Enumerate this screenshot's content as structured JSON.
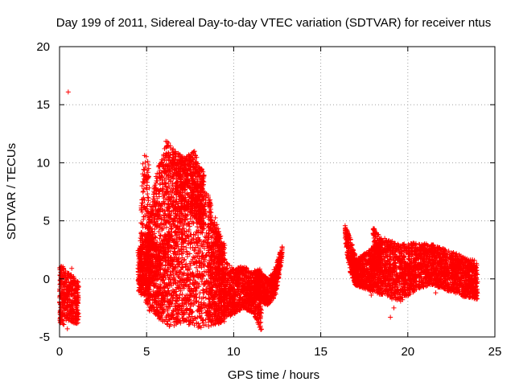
{
  "chart_data": {
    "type": "scatter",
    "title": "Day 199 of 2011, Sidereal Day-to-day VTEC variation (SDTVAR) for receiver ntus",
    "xlabel": "GPS time / hours",
    "ylabel": "SDTVAR / TECUs",
    "xlim": [
      0,
      25
    ],
    "ylim": [
      -5,
      20
    ],
    "xticks": [
      "0",
      "5",
      "10",
      "15",
      "20",
      "25"
    ],
    "yticks": [
      "-5",
      "0",
      "5",
      "10",
      "15",
      "20"
    ],
    "grid": true,
    "marker": "+",
    "series_color": "#ff0000",
    "outliers": [
      {
        "x": 0.5,
        "y": 16.1
      },
      {
        "x": 0.7,
        "y": 0.9
      },
      {
        "x": 0.45,
        "y": -4.3
      },
      {
        "x": 17.9,
        "y": -1.4
      },
      {
        "x": 19.0,
        "y": -3.3
      },
      {
        "x": 19.2,
        "y": -2.5
      },
      {
        "x": 21.6,
        "y": -1.2
      }
    ],
    "clusters": [
      {
        "x0": 0.0,
        "x1": 1.1,
        "yTop": [
          1.2,
          1.0,
          0.5,
          0.2,
          -0.3
        ],
        "yBot": [
          -3.8,
          -4.0,
          -3.6,
          -3.8,
          -3.9
        ]
      },
      {
        "x0": 4.6,
        "x1": 5.2,
        "yTop": [
          2.5,
          11.0,
          10.5,
          9.5
        ],
        "yBot": [
          -0.5,
          -1.0,
          -2.0,
          -3.0
        ]
      },
      {
        "x0": 5.0,
        "x1": 8.3,
        "yTop": [
          4.0,
          9.0,
          12.0,
          11.0,
          10.5,
          11.0,
          9.0
        ],
        "yBot": [
          -1.5,
          0.5,
          2.0,
          5.0,
          6.0,
          5.5,
          4.0
        ]
      },
      {
        "x0": 4.5,
        "x1": 9.5,
        "yTop": [
          2.5,
          4.0,
          3.0,
          4.5,
          5.5,
          7.5,
          8.5,
          5.0,
          3.0
        ],
        "yBot": [
          -1.0,
          -2.5,
          -3.5,
          -4.2,
          -3.8,
          -4.0,
          -4.3,
          -4.0,
          -3.8
        ]
      },
      {
        "x0": 8.5,
        "x1": 11.6,
        "yTop": [
          7.5,
          5.0,
          1.5,
          0.8,
          1.2,
          0.5,
          1.0
        ],
        "yBot": [
          -3.5,
          -4.0,
          -3.5,
          -3.0,
          -2.5,
          -3.0,
          -4.5
        ]
      },
      {
        "x0": 11.2,
        "x1": 12.8,
        "yTop": [
          0.8,
          0.5,
          0.0,
          1.0,
          3.0
        ],
        "yBot": [
          -1.5,
          -2.0,
          -2.3,
          -1.5,
          2.0
        ]
      },
      {
        "x0": 16.4,
        "x1": 17.0,
        "yTop": [
          4.6,
          3.5,
          2.0
        ],
        "yBot": [
          3.0,
          0.5,
          -0.5
        ]
      },
      {
        "x0": 16.9,
        "x1": 24.0,
        "yTop": [
          1.5,
          2.5,
          3.5,
          3.0,
          3.1,
          3.0,
          2.5,
          2.0,
          1.5
        ],
        "yBot": [
          -0.5,
          -1.0,
          -1.5,
          -2.0,
          -1.0,
          -0.5,
          -1.0,
          -1.5,
          -1.8
        ]
      },
      {
        "x0": 18.0,
        "x1": 18.5,
        "yTop": [
          4.5,
          3.5
        ],
        "yBot": [
          1.0,
          0.5
        ]
      }
    ]
  }
}
